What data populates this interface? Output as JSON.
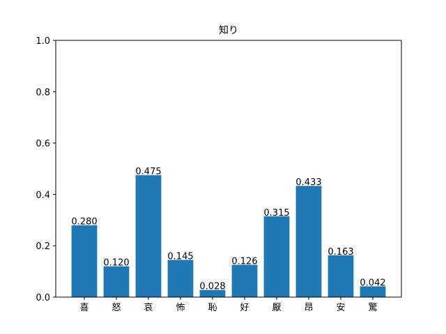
{
  "chart_data": {
    "type": "bar",
    "title": "知り",
    "categories": [
      "喜",
      "怒",
      "哀",
      "怖",
      "恥",
      "好",
      "厭",
      "昂",
      "安",
      "驚"
    ],
    "values": [
      0.28,
      0.12,
      0.475,
      0.145,
      0.028,
      0.126,
      0.315,
      0.433,
      0.163,
      0.042
    ],
    "value_labels": [
      "0.280",
      "0.120",
      "0.475",
      "0.145",
      "0.028",
      "0.126",
      "0.315",
      "0.433",
      "0.163",
      "0.042"
    ],
    "ylim": [
      0,
      1.0
    ],
    "yticks": [
      0.0,
      0.2,
      0.4,
      0.6,
      0.8,
      1.0
    ],
    "ytick_labels": [
      "0.0",
      "0.2",
      "0.4",
      "0.6",
      "0.8",
      "1.0"
    ],
    "xlabel": "",
    "ylabel": "",
    "grid": false,
    "bar_color": "#1f77b4"
  }
}
